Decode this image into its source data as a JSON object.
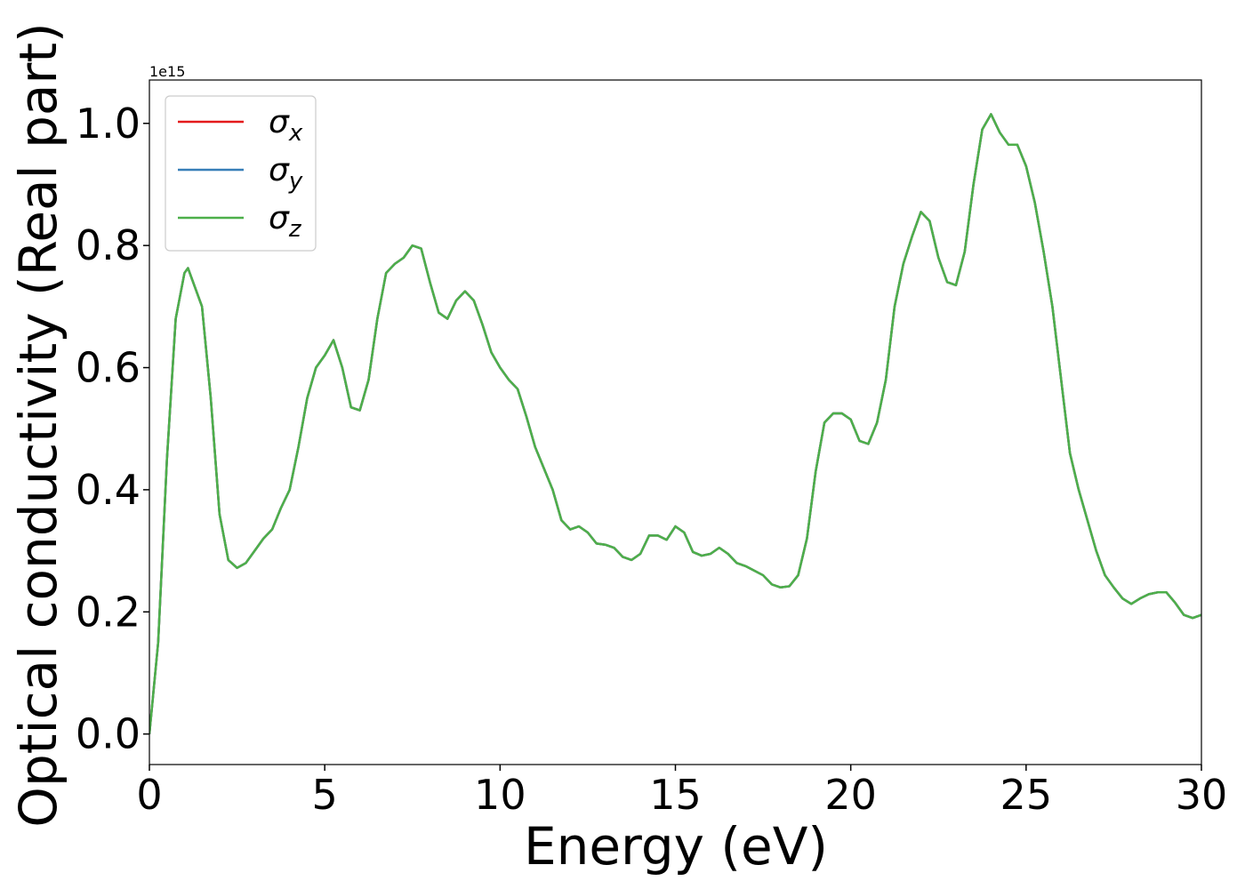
{
  "chart_data": {
    "type": "line",
    "xlabel": "Energy (eV)",
    "ylabel": "Optical conductivity (Real part)",
    "offset_label": "1e15",
    "x": [
      0,
      0.25,
      0.5,
      0.75,
      1,
      1.1,
      1.5,
      1.75,
      2,
      2.25,
      2.5,
      2.75,
      3,
      3.25,
      3.5,
      3.75,
      4,
      4.25,
      4.5,
      4.75,
      5,
      5.25,
      5.5,
      5.75,
      6,
      6.25,
      6.5,
      6.75,
      7,
      7.25,
      7.5,
      7.75,
      8,
      8.25,
      8.5,
      8.75,
      9,
      9.25,
      9.5,
      9.75,
      10,
      10.25,
      10.5,
      10.75,
      11,
      11.25,
      11.5,
      11.75,
      12,
      12.25,
      12.5,
      12.75,
      13,
      13.25,
      13.5,
      13.75,
      14,
      14.25,
      14.5,
      14.75,
      15,
      15.25,
      15.5,
      15.75,
      16,
      16.25,
      16.5,
      16.75,
      17,
      17.5,
      17.75,
      18,
      18.25,
      18.5,
      18.75,
      19,
      19.25,
      19.5,
      19.75,
      20,
      20.25,
      20.5,
      20.75,
      21,
      21.25,
      21.5,
      21.75,
      22,
      22.25,
      22.5,
      22.75,
      23,
      23.25,
      23.5,
      23.75,
      24,
      24.25,
      24.5,
      24.75,
      25,
      25.25,
      25.5,
      25.75,
      26,
      26.25,
      26.5,
      26.75,
      27,
      27.25,
      27.5,
      27.75,
      28,
      28.25,
      28.5,
      28.75,
      29,
      29.25,
      29.5,
      29.75,
      30
    ],
    "series": [
      {
        "name": "σx",
        "color": "#e41a1c",
        "values": [
          0,
          0.15,
          0.45,
          0.68,
          0.755,
          0.763,
          0.7,
          0.55,
          0.36,
          0.285,
          0.272,
          0.28,
          0.3,
          0.32,
          0.335,
          0.37,
          0.4,
          0.47,
          0.55,
          0.6,
          0.62,
          0.645,
          0.6,
          0.535,
          0.53,
          0.58,
          0.68,
          0.755,
          0.77,
          0.78,
          0.8,
          0.795,
          0.74,
          0.69,
          0.68,
          0.71,
          0.725,
          0.71,
          0.67,
          0.625,
          0.6,
          0.58,
          0.565,
          0.52,
          0.47,
          0.435,
          0.4,
          0.35,
          0.335,
          0.34,
          0.33,
          0.312,
          0.31,
          0.305,
          0.29,
          0.285,
          0.295,
          0.325,
          0.325,
          0.318,
          0.34,
          0.33,
          0.298,
          0.292,
          0.295,
          0.305,
          0.295,
          0.28,
          0.275,
          0.26,
          0.245,
          0.24,
          0.242,
          0.26,
          0.32,
          0.43,
          0.51,
          0.525,
          0.525,
          0.515,
          0.48,
          0.475,
          0.51,
          0.58,
          0.7,
          0.77,
          0.815,
          0.855,
          0.84,
          0.78,
          0.74,
          0.735,
          0.79,
          0.9,
          0.99,
          1.015,
          0.985,
          0.965,
          0.965,
          0.93,
          0.87,
          0.79,
          0.7,
          0.58,
          0.46,
          0.4,
          0.35,
          0.3,
          0.26,
          0.24,
          0.222,
          0.213,
          0.222,
          0.229,
          0.232,
          0.232,
          0.215,
          0.195,
          0.19,
          0.195
        ]
      },
      {
        "name": "σy",
        "color": "#377eb8",
        "values": [
          0,
          0.15,
          0.45,
          0.68,
          0.755,
          0.763,
          0.7,
          0.55,
          0.36,
          0.285,
          0.272,
          0.28,
          0.3,
          0.32,
          0.335,
          0.37,
          0.4,
          0.47,
          0.55,
          0.6,
          0.62,
          0.645,
          0.6,
          0.535,
          0.53,
          0.58,
          0.68,
          0.755,
          0.77,
          0.78,
          0.8,
          0.795,
          0.74,
          0.69,
          0.68,
          0.71,
          0.725,
          0.71,
          0.67,
          0.625,
          0.6,
          0.58,
          0.565,
          0.52,
          0.47,
          0.435,
          0.4,
          0.35,
          0.335,
          0.34,
          0.33,
          0.312,
          0.31,
          0.305,
          0.29,
          0.285,
          0.295,
          0.325,
          0.325,
          0.318,
          0.34,
          0.33,
          0.298,
          0.292,
          0.295,
          0.305,
          0.295,
          0.28,
          0.275,
          0.26,
          0.245,
          0.24,
          0.242,
          0.26,
          0.32,
          0.43,
          0.51,
          0.525,
          0.525,
          0.515,
          0.48,
          0.475,
          0.51,
          0.58,
          0.7,
          0.77,
          0.815,
          0.855,
          0.84,
          0.78,
          0.74,
          0.735,
          0.79,
          0.9,
          0.99,
          1.015,
          0.985,
          0.965,
          0.965,
          0.93,
          0.87,
          0.79,
          0.7,
          0.58,
          0.46,
          0.4,
          0.35,
          0.3,
          0.26,
          0.24,
          0.222,
          0.213,
          0.222,
          0.229,
          0.232,
          0.232,
          0.215,
          0.195,
          0.19,
          0.195
        ]
      },
      {
        "name": "σz",
        "color": "#4daf4a",
        "values": [
          0,
          0.15,
          0.45,
          0.68,
          0.755,
          0.763,
          0.7,
          0.55,
          0.36,
          0.285,
          0.272,
          0.28,
          0.3,
          0.32,
          0.335,
          0.37,
          0.4,
          0.47,
          0.55,
          0.6,
          0.62,
          0.645,
          0.6,
          0.535,
          0.53,
          0.58,
          0.68,
          0.755,
          0.77,
          0.78,
          0.8,
          0.795,
          0.74,
          0.69,
          0.68,
          0.71,
          0.725,
          0.71,
          0.67,
          0.625,
          0.6,
          0.58,
          0.565,
          0.52,
          0.47,
          0.435,
          0.4,
          0.35,
          0.335,
          0.34,
          0.33,
          0.312,
          0.31,
          0.305,
          0.29,
          0.285,
          0.295,
          0.325,
          0.325,
          0.318,
          0.34,
          0.33,
          0.298,
          0.292,
          0.295,
          0.305,
          0.295,
          0.28,
          0.275,
          0.26,
          0.245,
          0.24,
          0.242,
          0.26,
          0.32,
          0.43,
          0.51,
          0.525,
          0.525,
          0.515,
          0.48,
          0.475,
          0.51,
          0.58,
          0.7,
          0.77,
          0.815,
          0.855,
          0.84,
          0.78,
          0.74,
          0.735,
          0.79,
          0.9,
          0.99,
          1.015,
          0.985,
          0.965,
          0.965,
          0.93,
          0.87,
          0.79,
          0.7,
          0.58,
          0.46,
          0.4,
          0.35,
          0.3,
          0.26,
          0.24,
          0.222,
          0.213,
          0.222,
          0.229,
          0.232,
          0.232,
          0.215,
          0.195,
          0.19,
          0.195
        ]
      }
    ],
    "xlim": [
      0,
      30
    ],
    "xticks": [
      0,
      5,
      10,
      15,
      20,
      25,
      30
    ],
    "ylim": [
      -0.05,
      1.071
    ],
    "yticks": [
      {
        "value": 0,
        "label": "0.0"
      },
      0.2,
      0.4,
      0.6,
      0.8,
      {
        "value": 1,
        "label": "1.0"
      }
    ],
    "legend": "upper left",
    "grid": false
  }
}
